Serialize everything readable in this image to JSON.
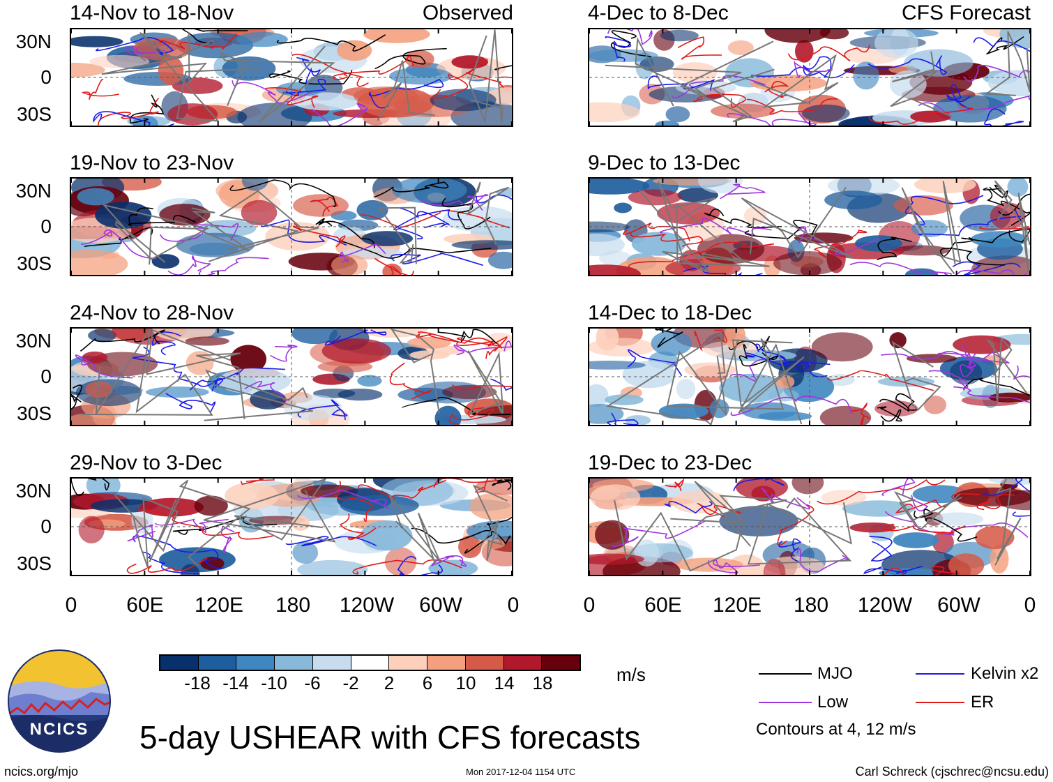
{
  "observed_label": "Observed",
  "forecast_label": "CFS Forecast",
  "panels_left": [
    {
      "title": "14-Nov to 18-Nov"
    },
    {
      "title": "19-Nov to 23-Nov"
    },
    {
      "title": "24-Nov to 28-Nov"
    },
    {
      "title": "29-Nov to 3-Dec"
    }
  ],
  "panels_right": [
    {
      "title": "4-Dec to 8-Dec"
    },
    {
      "title": "9-Dec to 13-Dec"
    },
    {
      "title": "14-Dec to 18-Dec"
    },
    {
      "title": "19-Dec to 23-Dec"
    }
  ],
  "y_axis": [
    "30N",
    "0",
    "30S"
  ],
  "x_axis": [
    "0",
    "60E",
    "120E",
    "180",
    "120W",
    "60W",
    "0"
  ],
  "colorbar": {
    "labels": [
      "-18",
      "-14",
      "-10",
      "-6",
      "-2",
      "2",
      "6",
      "10",
      "14",
      "18"
    ],
    "colors": [
      "#08306b",
      "#1f5e9e",
      "#3f87c0",
      "#88b9db",
      "#c7ddef",
      "#ffffff",
      "#fdd0bc",
      "#f4a07e",
      "#d65a48",
      "#b2182b",
      "#67000d"
    ],
    "units": "m/s"
  },
  "legend": {
    "items": [
      {
        "label": "MJO",
        "color": "#000000"
      },
      {
        "label": "Kelvin x2",
        "color": "#1a1ae6"
      },
      {
        "label": "Low",
        "color": "#a033e0"
      },
      {
        "label": "ER",
        "color": "#e01a1a"
      }
    ],
    "note": "Contours at 4, 12 m/s"
  },
  "main_title": "5-day USHEAR with CFS forecasts",
  "logo_text": "NCICS",
  "footer": {
    "url": "ncics.org/mjo",
    "timestamp": "Mon 2017-12-04 1154 UTC",
    "credit": "Carl Schreck (cjschrec@ncsu.edu)"
  },
  "chart_data": {
    "type": "heatmap",
    "variable": "5-day USHEAR",
    "units": "m/s",
    "contour_levels": [
      4,
      12
    ],
    "x_range_lon": [
      0,
      360
    ],
    "y_range_lat": [
      -40,
      40
    ],
    "x_ticks": [
      "0",
      "60E",
      "120E",
      "180",
      "120W",
      "60W",
      "0"
    ],
    "y_ticks": [
      "30N",
      "0",
      "30S"
    ],
    "panels": [
      {
        "title": "14-Nov to 18-Nov",
        "source": "Observed"
      },
      {
        "title": "19-Nov to 23-Nov",
        "source": "Observed"
      },
      {
        "title": "24-Nov to 28-Nov",
        "source": "Observed"
      },
      {
        "title": "29-Nov to 3-Dec",
        "source": "Observed"
      },
      {
        "title": "4-Dec to 8-Dec",
        "source": "CFS Forecast"
      },
      {
        "title": "9-Dec to 13-Dec",
        "source": "CFS Forecast"
      },
      {
        "title": "14-Dec to 18-Dec",
        "source": "CFS Forecast"
      },
      {
        "title": "19-Dec to 23-Dec",
        "source": "CFS Forecast"
      }
    ]
  }
}
